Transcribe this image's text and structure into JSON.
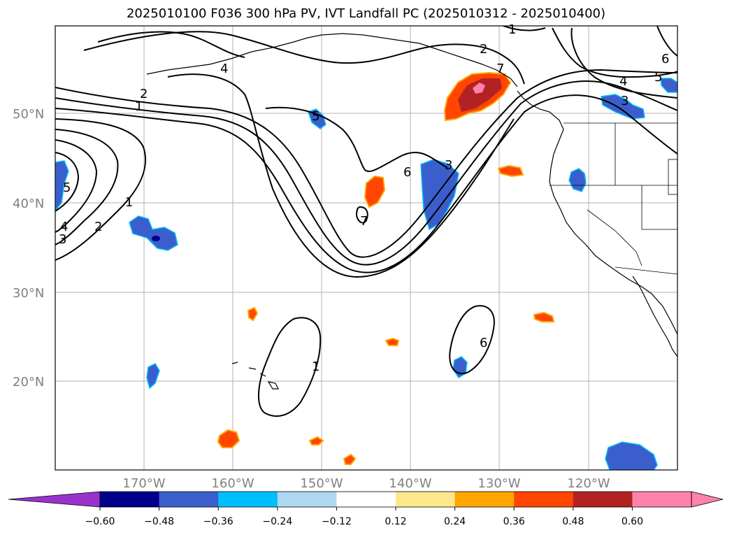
{
  "title": "2025010100 F036 300 hPa PV, IVT Landfall PC (2025010312 - 2025010400)",
  "lat_labels": [
    "50°N",
    "40°N",
    "30°N",
    "20°N"
  ],
  "lon_labels": [
    "170°W",
    "160°W",
    "150°W",
    "140°W",
    "130°W",
    "120°W"
  ],
  "contour_labels": [
    "1",
    "2",
    "3",
    "4",
    "5",
    "6",
    "7",
    "1",
    "2",
    "3",
    "4",
    "5",
    "6",
    "7",
    "1",
    "1",
    "2",
    "3",
    "4",
    "5",
    "6"
  ],
  "colorbar": {
    "ticks": [
      "−0.60",
      "−0.48",
      "−0.36",
      "−0.24",
      "−0.12",
      "0.12",
      "0.24",
      "0.36",
      "0.48",
      "0.60"
    ],
    "colors": [
      "#9932cc",
      "#00008b",
      "#3a5fcd",
      "#00bfff",
      "#add8f0",
      "#ffffff",
      "#fde78c",
      "#ffa500",
      "#ff4500",
      "#b22222",
      "#ff82ab",
      "#ff82ab"
    ]
  }
}
